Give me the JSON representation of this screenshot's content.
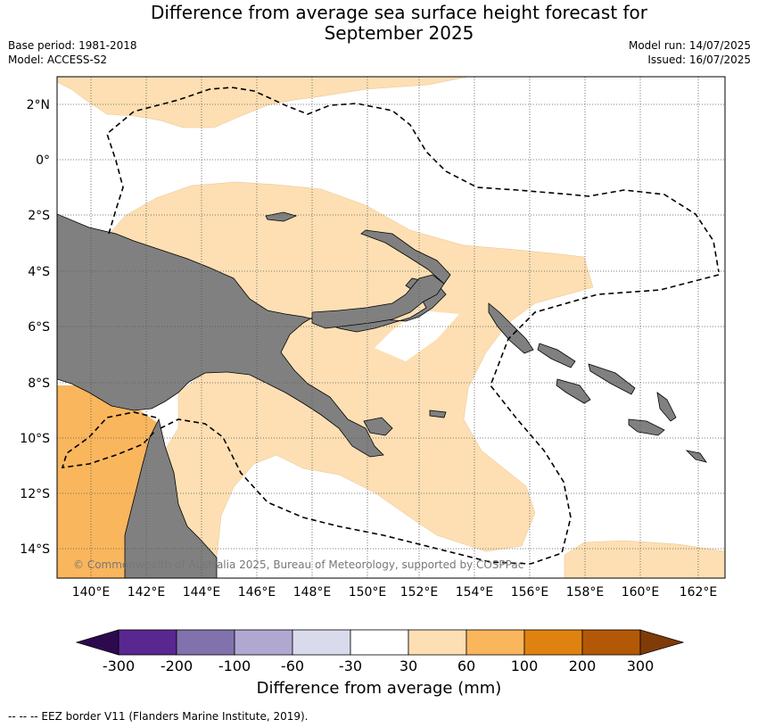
{
  "header": {
    "title_line1": "Difference from average sea surface height forecast for",
    "title_line2": "September 2025",
    "base_period": "Base period: 1981-2018",
    "model": "Model: ACCESS-S2",
    "model_run": "Model run: 14/07/2025",
    "issued": "Issued: 16/07/2025"
  },
  "map": {
    "lon_ticks": [
      "140°E",
      "142°E",
      "144°E",
      "146°E",
      "148°E",
      "150°E",
      "152°E",
      "154°E",
      "156°E",
      "158°E",
      "160°E",
      "162°E"
    ],
    "lat_ticks": [
      "2°N",
      "0°",
      "2°S",
      "4°S",
      "6°S",
      "8°S",
      "10°S",
      "12°S",
      "14°S"
    ],
    "copyright": "© Commonwealth of Australia 2025, Bureau of Meteorology, supported by COSPPac",
    "colors": {
      "land": "#808080",
      "cat_30_60": "#fddfb3",
      "cat_60_100": "#f9b65d",
      "eez_line": "#000000"
    }
  },
  "colorbar": {
    "tick_labels": [
      "-300",
      "-200",
      "-100",
      "-60",
      "-30",
      "30",
      "60",
      "100",
      "200",
      "300"
    ],
    "title": "Difference from average (mm)",
    "colors": [
      "#2d0a4e",
      "#5a2790",
      "#8172ad",
      "#b1a8d1",
      "#d9dbec",
      "#ffffff",
      "#fddfb3",
      "#f9b65d",
      "#e0820f",
      "#b35806",
      "#7f3b08"
    ]
  },
  "footnote": "--  --  -- EEZ border V11 (Flanders Marine Institute, 2019)."
}
